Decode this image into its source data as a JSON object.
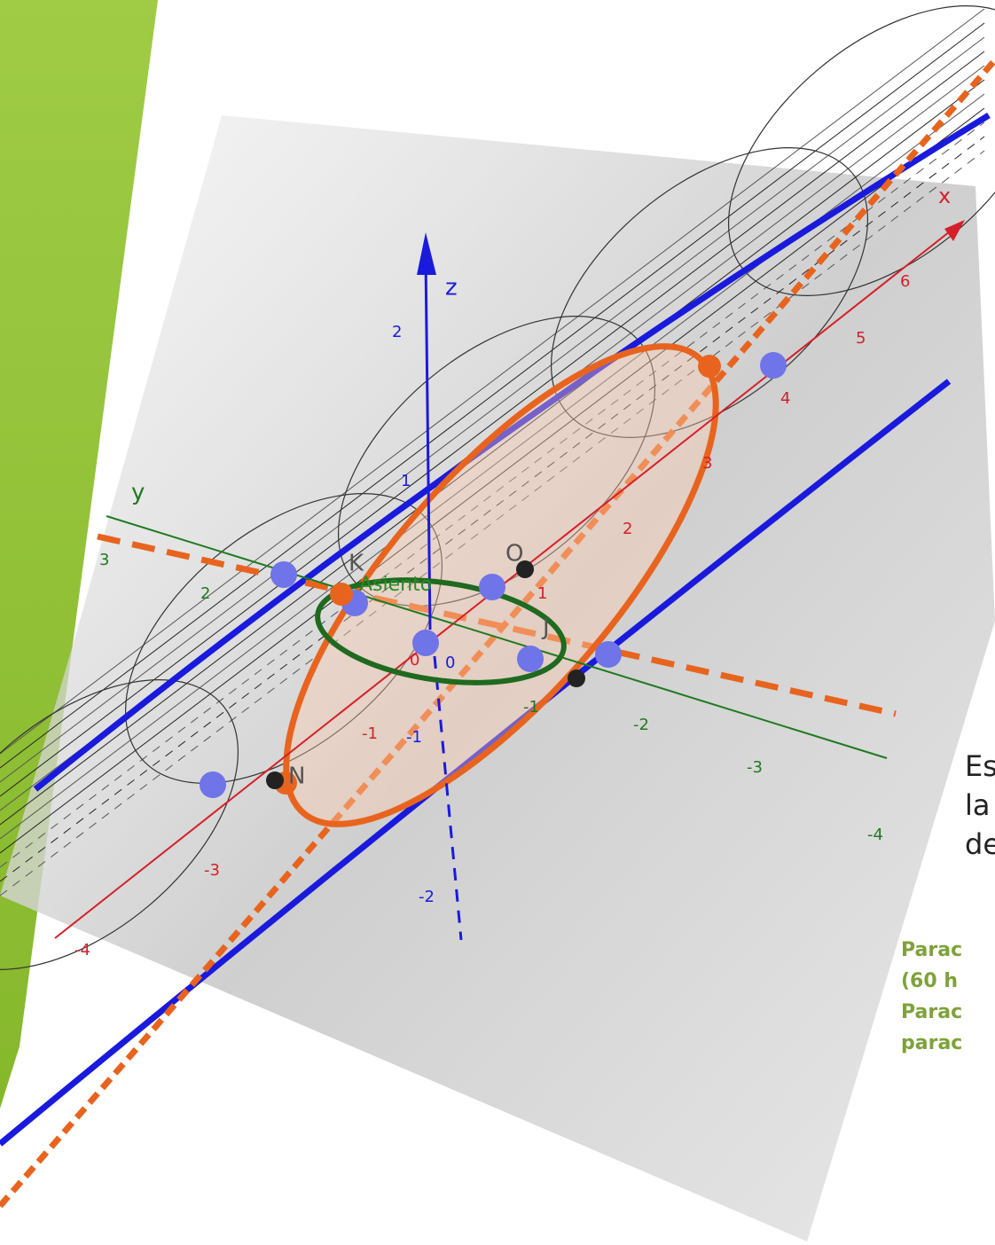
{
  "figure": {
    "axis_labels": {
      "x": "x",
      "y": "y",
      "z": "z"
    },
    "x_ticks": [
      -4,
      -3,
      -1,
      0,
      1,
      2,
      3,
      4,
      5,
      6
    ],
    "y_ticks": [
      3,
      2,
      -1,
      -2,
      -3,
      -4
    ],
    "z_ticks": [
      2,
      1,
      0,
      -1,
      -2
    ],
    "point_labels": [
      "K",
      "O",
      "J",
      "N",
      "Asiento"
    ]
  },
  "slide": {
    "body_text": [
      "Es",
      "la",
      "de"
    ],
    "notes": [
      "Parac",
      "(60 h",
      "Parac",
      "parac"
    ]
  }
}
